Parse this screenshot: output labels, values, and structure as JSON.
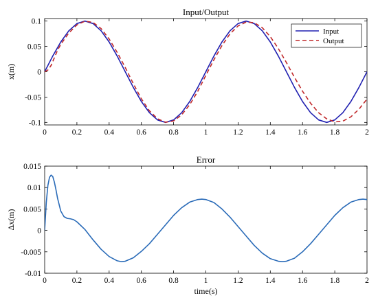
{
  "colors": {
    "input": "#1f1fb0",
    "output": "#c0282a",
    "error": "#2a6bb8",
    "axis": "#000000"
  },
  "chart_data": [
    {
      "type": "line",
      "title": "Input/Output",
      "xlabel": "",
      "ylabel": "x(m)",
      "xlim": [
        0,
        2
      ],
      "ylim": [
        -0.105,
        0.105
      ],
      "x_ticks": [
        "0",
        "0.2",
        "0.4",
        "0.6",
        "0.8",
        "1",
        "1.2",
        "1.4",
        "1.6",
        "1.8",
        "2"
      ],
      "y_ticks": [
        "0.1",
        "0.05",
        "0",
        "-0.05",
        "-0.1"
      ],
      "legend": {
        "position": "top-right",
        "entries": [
          "Input",
          "Output"
        ]
      },
      "series": [
        {
          "name": "Input",
          "style": "solid",
          "x": [
            0,
            0.05,
            0.1,
            0.15,
            0.2,
            0.25,
            0.3,
            0.35,
            0.4,
            0.45,
            0.5,
            0.55,
            0.6,
            0.65,
            0.7,
            0.75,
            0.8,
            0.85,
            0.9,
            0.95,
            1.0,
            1.05,
            1.1,
            1.15,
            1.2,
            1.25,
            1.3,
            1.35,
            1.4,
            1.45,
            1.5,
            1.55,
            1.6,
            1.65,
            1.7,
            1.75,
            1.8,
            1.85,
            1.9,
            1.95,
            2.0
          ],
          "y": [
            0,
            0.0309,
            0.0588,
            0.0809,
            0.0951,
            0.1,
            0.0951,
            0.0809,
            0.0588,
            0.0309,
            0,
            -0.0309,
            -0.0588,
            -0.0809,
            -0.0951,
            -0.1,
            -0.0951,
            -0.0809,
            -0.0588,
            -0.0309,
            0,
            0.0309,
            0.0588,
            0.0809,
            0.0951,
            0.1,
            0.0951,
            0.0809,
            0.0588,
            0.0309,
            0,
            -0.0309,
            -0.0588,
            -0.0809,
            -0.0951,
            -0.1,
            -0.0951,
            -0.0809,
            -0.0588,
            -0.0309,
            0
          ]
        },
        {
          "name": "Output",
          "style": "dashed",
          "x": [
            0,
            0.02,
            0.04,
            0.06,
            0.08,
            0.1,
            0.15,
            0.2,
            0.25,
            0.3,
            0.35,
            0.4,
            0.45,
            0.5,
            0.55,
            0.6,
            0.65,
            0.7,
            0.75,
            0.8,
            0.85,
            0.9,
            0.95,
            1.0,
            1.05,
            1.1,
            1.15,
            1.2,
            1.25,
            1.3,
            1.35,
            1.4,
            1.45,
            1.5,
            1.55,
            1.6,
            1.65,
            1.7,
            1.75,
            1.8,
            1.85,
            1.9,
            1.95,
            2.0
          ],
          "y": [
            0,
            0.0035,
            0.0125,
            0.0275,
            0.0425,
            0.054,
            0.0766,
            0.0924,
            0.0998,
            0.0973,
            0.0852,
            0.0647,
            0.0381,
            0.0084,
            -0.0235,
            -0.0535,
            -0.0771,
            -0.0928,
            -0.0997,
            -0.0971,
            -0.0851,
            -0.065,
            -0.0386,
            -0.0072,
            0.0236,
            0.0516,
            0.0748,
            0.0904,
            0.098,
            0.0968,
            0.0869,
            0.0693,
            0.0456,
            0.018,
            -0.011,
            -0.0385,
            -0.0622,
            -0.081,
            -0.093,
            -0.099,
            -0.0975,
            -0.089,
            -0.074,
            -0.054
          ]
        }
      ]
    },
    {
      "type": "line",
      "title": "Error",
      "xlabel": "time(s)",
      "ylabel": "Δx(m)",
      "xlim": [
        0,
        2
      ],
      "ylim": [
        -0.01,
        0.015
      ],
      "x_ticks": [
        "0",
        "0.2",
        "0.4",
        "0.6",
        "0.8",
        "1",
        "1.2",
        "1.4",
        "1.6",
        "1.8",
        "2"
      ],
      "y_ticks": [
        "0.015",
        "0.01",
        "0.005",
        "0",
        "-0.005",
        "-0.01"
      ],
      "series": [
        {
          "style": "solid",
          "x": [
            0,
            0.01,
            0.02,
            0.03,
            0.04,
            0.05,
            0.06,
            0.07,
            0.08,
            0.1,
            0.12,
            0.14,
            0.16,
            0.18,
            0.2,
            0.25,
            0.3,
            0.35,
            0.4,
            0.45,
            0.475,
            0.5,
            0.55,
            0.6,
            0.65,
            0.7,
            0.75,
            0.8,
            0.85,
            0.9,
            0.95,
            0.975,
            1.0,
            1.05,
            1.1,
            1.15,
            1.2,
            1.25,
            1.3,
            1.35,
            1.4,
            1.45,
            1.475,
            1.5,
            1.55,
            1.6,
            1.65,
            1.7,
            1.75,
            1.8,
            1.85,
            1.9,
            1.95,
            1.975,
            2.0
          ],
          "y": [
            0,
            0.0065,
            0.0105,
            0.0124,
            0.0129,
            0.0126,
            0.0113,
            0.0095,
            0.0075,
            0.0045,
            0.0032,
            0.0028,
            0.0027,
            0.0025,
            0.002,
            0.0002,
            -0.0022,
            -0.0044,
            -0.0061,
            -0.0071,
            -0.0073,
            -0.0072,
            -0.0064,
            -0.0049,
            -0.0031,
            -0.0009,
            0.0013,
            0.0035,
            0.0053,
            0.0066,
            0.0072,
            0.0073,
            0.0072,
            0.0065,
            0.005,
            0.0031,
            0.0009,
            -0.0013,
            -0.0035,
            -0.0053,
            -0.0066,
            -0.0072,
            -0.0073,
            -0.0072,
            -0.0065,
            -0.005,
            -0.0031,
            -0.0009,
            0.0013,
            0.0035,
            0.0053,
            0.0066,
            0.0072,
            0.0073,
            0.0072
          ]
        }
      ]
    }
  ]
}
